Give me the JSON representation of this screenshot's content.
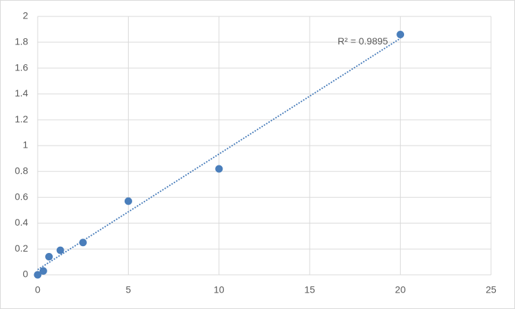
{
  "chart_data": {
    "type": "scatter",
    "series": [
      {
        "color": "#4a7ebb",
        "x": [
          0,
          0.3125,
          0.625,
          1.25,
          2.5,
          5,
          10,
          20
        ],
        "values": [
          0,
          0.03,
          0.14,
          0.19,
          0.25,
          0.57,
          0.82,
          1.86
        ]
      }
    ],
    "trendline": {
      "style": "dotted",
      "color": "#4a7ebb",
      "x": [
        0,
        20
      ],
      "values": [
        0.04,
        1.83
      ],
      "label": "R² = 0.9895"
    },
    "xlim": [
      0,
      25
    ],
    "xticks": [
      0,
      5,
      10,
      15,
      20,
      25
    ],
    "ylim": [
      0,
      2
    ],
    "yticks": [
      0,
      0.2,
      0.4,
      0.6,
      0.8,
      1,
      1.2,
      1.4,
      1.6,
      1.8,
      2
    ],
    "grid": true
  }
}
